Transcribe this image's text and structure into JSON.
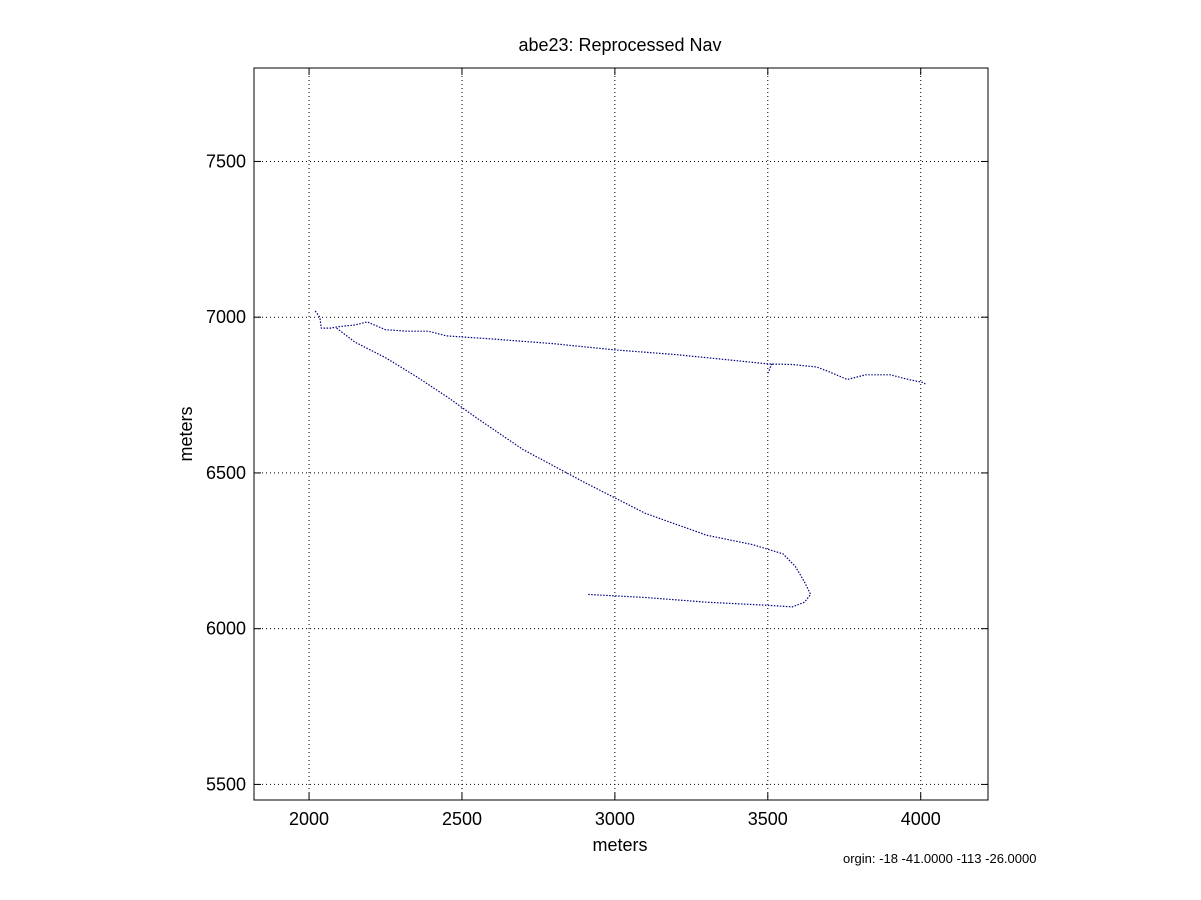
{
  "chart_data": {
    "type": "line",
    "title": "abe23: Reprocessed Nav",
    "xlabel": "meters",
    "ylabel": "meters",
    "xlim": [
      1820,
      4220
    ],
    "ylim": [
      5450,
      7800
    ],
    "xticks": [
      2000,
      2500,
      3000,
      3500,
      4000
    ],
    "yticks": [
      5500,
      6000,
      6500,
      7000,
      7500
    ],
    "grid": true,
    "line_style": "dotted",
    "series": [
      {
        "color": "#000080",
        "x": [
          2020,
          2035,
          2040,
          2070,
          2100,
          2150,
          2190,
          2250,
          2320,
          2390,
          2450,
          2600,
          2800,
          3000,
          3200,
          3350,
          3500,
          3580,
          3660,
          3700,
          3760,
          3820,
          3900,
          3960,
          4010,
          4015
        ],
        "y": [
          7020,
          7000,
          6965,
          6965,
          6970,
          6975,
          6985,
          6960,
          6955,
          6955,
          6940,
          6930,
          6915,
          6895,
          6880,
          6865,
          6850,
          6848,
          6840,
          6825,
          6800,
          6815,
          6815,
          6800,
          6790,
          6785
        ]
      },
      {
        "color": "#000080",
        "x": [
          2090,
          2150,
          2250,
          2350,
          2450,
          2550,
          2700,
          2900,
          3100,
          3300,
          3450,
          3550,
          3590,
          3620,
          3640,
          3620,
          3580,
          3500,
          3300,
          3100,
          2910
        ],
        "y": [
          6965,
          6920,
          6870,
          6810,
          6745,
          6675,
          6575,
          6470,
          6370,
          6300,
          6270,
          6240,
          6200,
          6150,
          6110,
          6085,
          6070,
          6075,
          6085,
          6100,
          6110
        ]
      },
      {
        "color": "#000080",
        "x": [
          3500,
          3505,
          3510,
          3515
        ],
        "y": [
          6820,
          6830,
          6845,
          6850
        ]
      }
    ]
  },
  "origin_note": "orgin: -18 -41.0000 -113 -26.0000"
}
